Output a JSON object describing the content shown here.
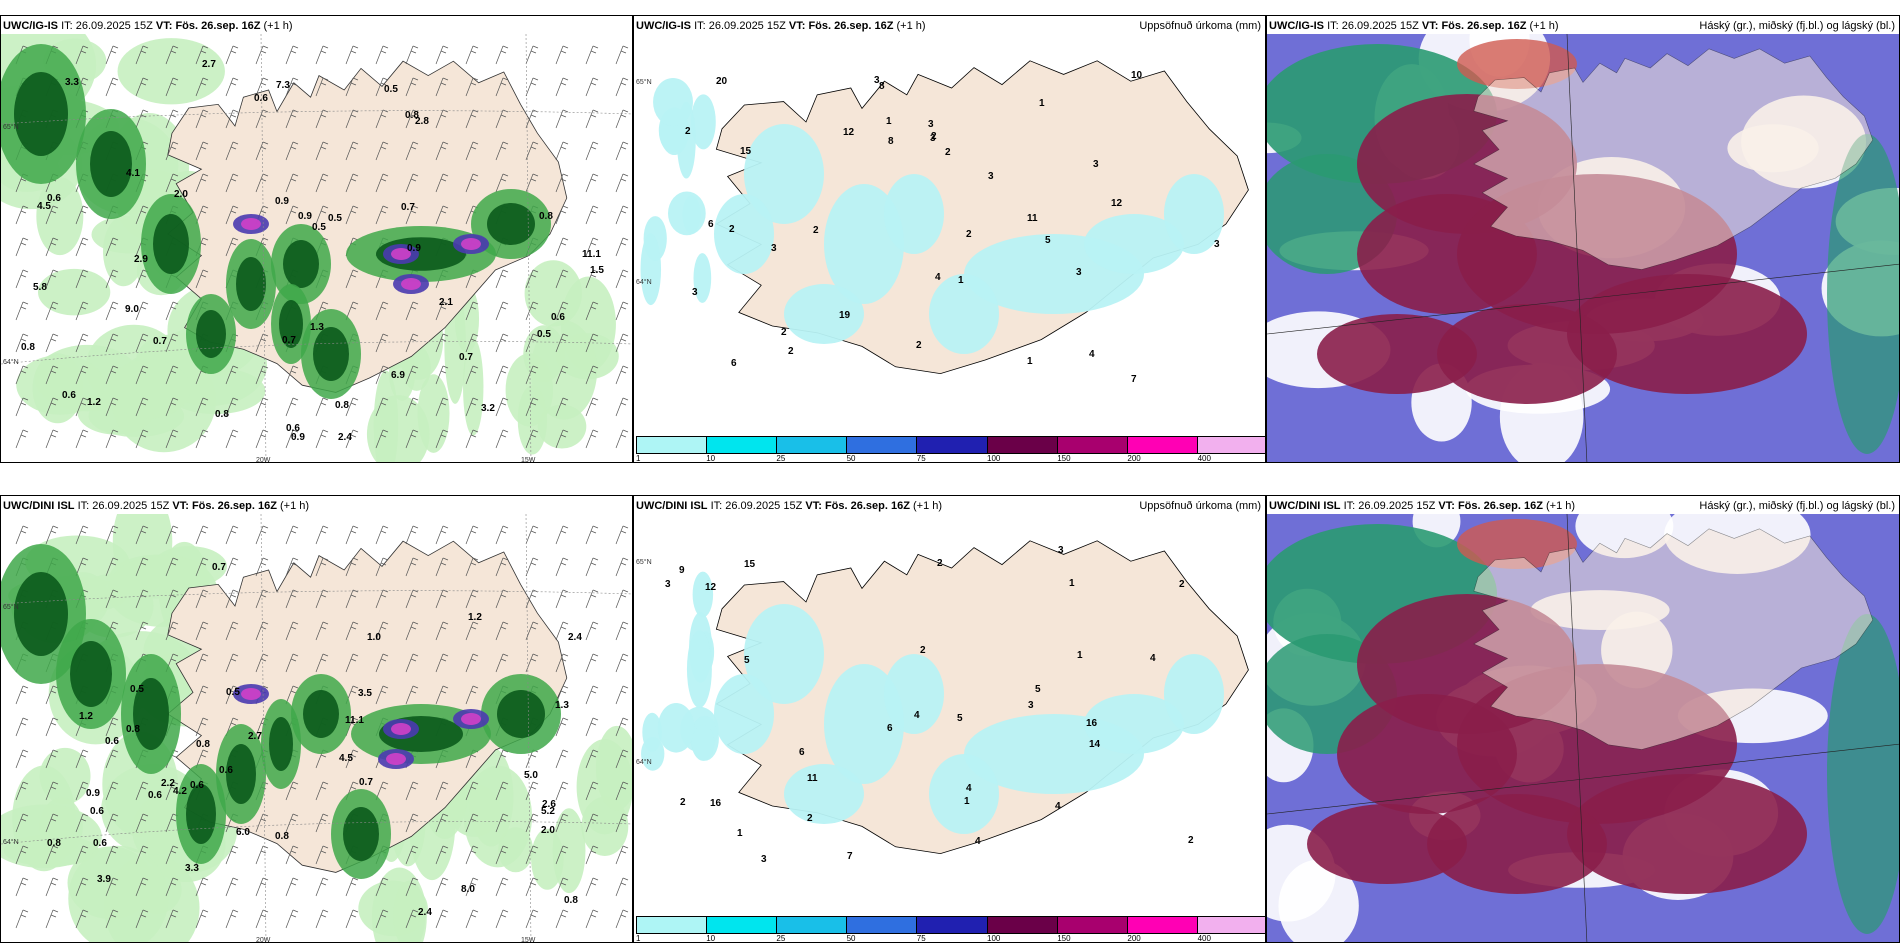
{
  "rows": [
    {
      "model": "UWC/IG-IS",
      "it_prefix": "IT:",
      "it": "26.09.2025 15Z",
      "vt_prefix": "VT:",
      "vt": "Fös. 26.sep. 16Z",
      "lead": "(+1 h)",
      "wind_values": [
        "0.5",
        "0.6",
        "0.9",
        "0.8",
        "0.7",
        "0.8",
        "2.1",
        "2.0",
        "0.6",
        "3.3",
        "4.1",
        "5.8",
        "0.9",
        "0.8",
        "0.5",
        "1.2",
        "0.9",
        "0.6",
        "0.6",
        "0.8",
        "1.3",
        "3.2",
        "2.4",
        "6.9",
        "7.3",
        "1.5",
        "0.7",
        "0.7",
        "0.5",
        "0.5",
        "0.6",
        "0.9",
        "0.8",
        "2.8",
        "2.9",
        "2.7",
        "11.1",
        "4.5",
        "9.0",
        "0.7"
      ],
      "accum_values": [
        "2",
        "1",
        "2",
        "2",
        "3",
        "3",
        "2",
        "5",
        "6",
        "4",
        "2",
        "7",
        "8",
        "4",
        "3",
        "3",
        "2",
        "1",
        "12",
        "3",
        "3",
        "2",
        "6",
        "20",
        "11",
        "19",
        "15",
        "12",
        "8",
        "10",
        "3",
        "1",
        "1",
        "3",
        "2",
        "2",
        "3"
      ]
    },
    {
      "model": "UWC/DINI ISL",
      "it_prefix": "IT:",
      "it": "26.09.2025 15Z",
      "vt_prefix": "VT:",
      "vt": "Fös. 26.sep. 16Z",
      "lead": "(+1 h)",
      "wind_values": [
        "0.8",
        "1.2",
        "2.0",
        "0.8",
        "2.7",
        "3.5",
        "0.6",
        "0.6",
        "1.0",
        "0.7",
        "2.4",
        "4.2",
        "3.9",
        "5.0",
        "0.8",
        "0.6",
        "0.7",
        "1.3",
        "2.6",
        "2.4",
        "11.1",
        "8.0",
        "2.2",
        "0.5",
        "0.8",
        "0.5",
        "0.6",
        "0.9",
        "0.6",
        "1.2",
        "3.3",
        "4.5",
        "6.0",
        "5.2",
        "0.6",
        "0.8"
      ],
      "accum_values": [
        "2",
        "2",
        "2",
        "4",
        "4",
        "1",
        "1",
        "3",
        "5",
        "7",
        "6",
        "12",
        "4",
        "9",
        "5",
        "3",
        "4",
        "6",
        "16",
        "11",
        "15",
        "14",
        "5",
        "3",
        "4",
        "3",
        "2",
        "16",
        "2",
        "1",
        "1",
        "2"
      ]
    }
  ],
  "accum_title": "Uppsöfnuð úrkoma (mm)",
  "cloud_title": "Háský (gr.), miðský (fj.bl.) og lágský (bl.)",
  "axis_labels": {
    "n65": "65°N",
    "n64": "64°N",
    "w20": "20W",
    "w15": "15W",
    "w25": "25W"
  },
  "colorbar": {
    "ticks": [
      "1",
      "10",
      "25",
      "50",
      "75",
      "100",
      "150",
      "200",
      "400"
    ],
    "colors": [
      "#aef5f5",
      "#00e5ee",
      "#19bfe8",
      "#2f6fe0",
      "#2020b0",
      "#6a0048",
      "#a8006e",
      "#ff00b4",
      "#f2b0ee"
    ]
  },
  "colors": {
    "land": "#f5e6d8",
    "precip_light": "#c6f0c0",
    "precip_mid": "#3fa84a",
    "precip_dark": "#0b5a1c",
    "accum": "#b8f2f4",
    "high_cloud": "#8a1e4a",
    "mid_cloud": "#6f6fd6",
    "low_cloud": "#2a9a72"
  }
}
